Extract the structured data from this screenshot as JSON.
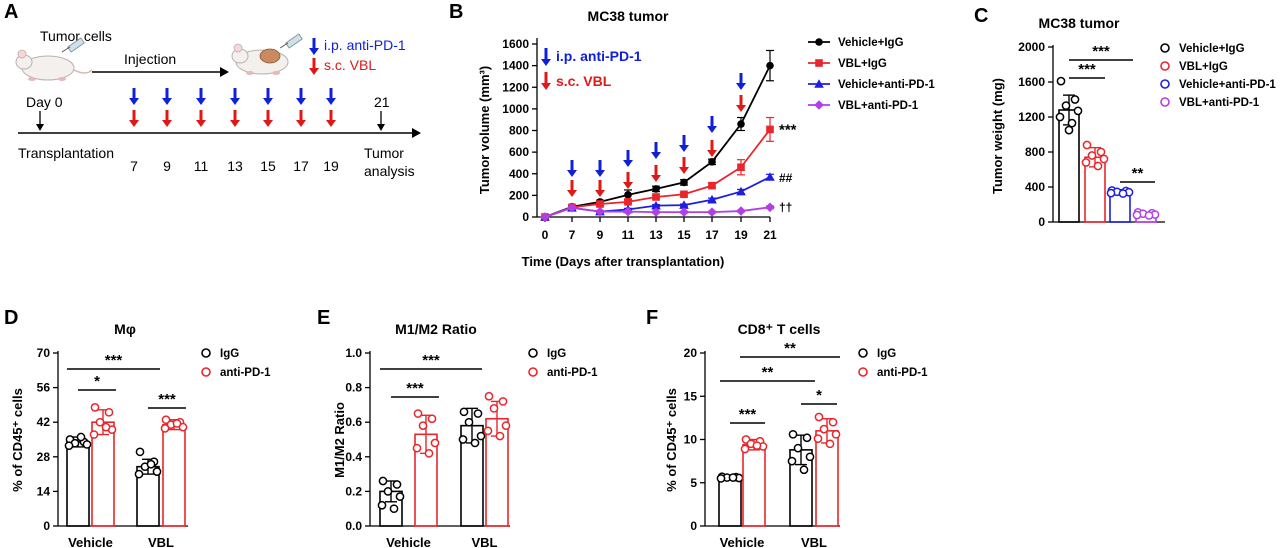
{
  "panel_labels": [
    "A",
    "B",
    "C",
    "D",
    "E",
    "F"
  ],
  "colors": {
    "black": "#000000",
    "red": "#e8262b",
    "blue": "#1d1fe0",
    "purple": "#b23ee8",
    "arrow_blue": "#1020d8",
    "arrow_red": "#e01818"
  },
  "schematic": {
    "tumor_cells": "Tumor cells",
    "injection": "Injection",
    "legend_blue": "i.p. anti-PD-1",
    "legend_red": "s.c. VBL",
    "day0": "Day 0",
    "transplantation": "Transplantation",
    "day21": "21",
    "tumor_analysis_1": "Tumor",
    "tumor_analysis_2": "analysis",
    "days": [
      "7",
      "9",
      "11",
      "13",
      "15",
      "17",
      "19"
    ]
  },
  "chart_data": [
    {
      "panel": "B",
      "type": "line",
      "title": "MC38 tumor",
      "xlabel": "Time (Days after transplantation)",
      "ylabel": "Tumor volume (mm³)",
      "x": [
        0,
        7,
        9,
        11,
        13,
        15,
        17,
        19,
        21
      ],
      "xticks": [
        "0",
        "7",
        "9",
        "11",
        "13",
        "15",
        "17",
        "19",
        "21"
      ],
      "ylim": [
        0,
        1600
      ],
      "yticks": [
        "0",
        "200",
        "400",
        "600",
        "800",
        "1000",
        "1200",
        "1400",
        "1600"
      ],
      "legend_position": "right",
      "annotation_blue": "i.p. anti-PD-1",
      "annotation_red": "s.c. VBL",
      "series": [
        {
          "name": "Vehicle+IgG",
          "color": "#000000",
          "marker": "circle",
          "values": [
            0,
            95,
            140,
            205,
            260,
            320,
            510,
            860,
            1400
          ],
          "err": [
            0,
            10,
            15,
            45,
            25,
            25,
            25,
            60,
            140
          ]
        },
        {
          "name": "VBL+IgG",
          "color": "#e8262b",
          "marker": "square",
          "values": [
            0,
            90,
            120,
            140,
            185,
            210,
            290,
            460,
            810
          ],
          "err": [
            0,
            10,
            15,
            15,
            15,
            15,
            20,
            70,
            110
          ]
        },
        {
          "name": "Vehicle+anti-PD-1",
          "color": "#1d1fe0",
          "marker": "triangle",
          "values": [
            0,
            85,
            50,
            70,
            105,
            110,
            160,
            235,
            370
          ],
          "err": [
            0,
            10,
            10,
            10,
            10,
            10,
            15,
            20,
            25
          ]
        },
        {
          "name": "VBL+anti-PD-1",
          "color": "#b23ee8",
          "marker": "diamond",
          "values": [
            0,
            85,
            50,
            50,
            45,
            45,
            45,
            55,
            90
          ],
          "err": [
            0,
            10,
            8,
            8,
            8,
            8,
            8,
            8,
            12
          ]
        }
      ],
      "end_labels": [
        "***",
        "##",
        "††"
      ],
      "arrows_days": [
        7,
        9,
        11,
        13,
        15,
        17,
        19
      ]
    },
    {
      "panel": "C",
      "type": "bar",
      "title": "MC38 tumor",
      "ylabel": "Tumor weight (mg)",
      "ylim": [
        0,
        2000
      ],
      "yticks": [
        "0",
        "400",
        "800",
        "1200",
        "1600",
        "2000"
      ],
      "categories": [
        "Vehicle+IgG",
        "VBL+IgG",
        "Vehicle+anti-PD-1",
        "VBL+anti-PD-1"
      ],
      "values": [
        1280,
        740,
        340,
        90
      ],
      "err": [
        170,
        110,
        30,
        20
      ],
      "colors": [
        "#000000",
        "#e8262b",
        "#1d1fe0",
        "#b23ee8"
      ],
      "points": [
        [
          1610,
          1400,
          1330,
          1270,
          1200,
          1130,
          1050
        ],
        [
          880,
          800,
          760,
          720,
          680,
          640
        ],
        [
          360,
          355,
          345,
          340,
          330,
          325
        ],
        [
          110,
          100,
          95,
          85,
          80,
          75
        ]
      ],
      "significance": [
        "***",
        "***",
        "**"
      ],
      "legend_position": "right"
    },
    {
      "panel": "D",
      "type": "bar",
      "title": "Mφ",
      "ylabel": "% of CD45⁺ cells",
      "ylim": [
        0,
        70
      ],
      "yticks": [
        "0",
        "14",
        "28",
        "42",
        "56",
        "70"
      ],
      "categories": [
        "Vehicle",
        "VBL"
      ],
      "series": [
        {
          "name": "IgG",
          "color": "#000000",
          "values": [
            34,
            24
          ],
          "err": [
            2,
            3
          ],
          "points": [
            [
              35,
              34,
              33.5,
              33,
              32.5,
              36
            ],
            [
              30,
              26,
              24,
              22,
              21,
              25
            ]
          ]
        },
        {
          "name": "anti-PD-1",
          "color": "#e8262b",
          "values": [
            42,
            41
          ],
          "err": [
            5,
            2
          ],
          "points": [
            [
              48,
              46,
              42,
              39,
              37,
              40
            ],
            [
              43,
              42,
              41,
              40,
              39.5,
              41.5
            ]
          ]
        }
      ],
      "significance": [
        "***",
        "*",
        "***"
      ],
      "legend_position": "top-right"
    },
    {
      "panel": "E",
      "type": "bar",
      "title": "M1/M2 Ratio",
      "ylabel": "M1/M2 Ratio",
      "ylim": [
        0,
        1.0
      ],
      "yticks": [
        "0.0",
        "0.2",
        "0.4",
        "0.6",
        "0.8",
        "1.0"
      ],
      "categories": [
        "Vehicle",
        "VBL"
      ],
      "series": [
        {
          "name": "IgG",
          "color": "#000000",
          "values": [
            0.2,
            0.58
          ],
          "err": [
            0.06,
            0.1
          ],
          "points": [
            [
              0.26,
              0.24,
              0.2,
              0.17,
              0.12,
              0.1
            ],
            [
              0.66,
              0.65,
              0.6,
              0.52,
              0.5,
              0.48
            ]
          ]
        },
        {
          "name": "anti-PD-1",
          "color": "#e8262b",
          "values": [
            0.53,
            0.62
          ],
          "err": [
            0.11,
            0.1
          ],
          "points": [
            [
              0.65,
              0.62,
              0.58,
              0.48,
              0.45,
              0.42
            ],
            [
              0.75,
              0.72,
              0.68,
              0.58,
              0.55,
              0.52
            ]
          ]
        }
      ],
      "significance": [
        "***",
        "***"
      ],
      "legend_position": "top-right"
    },
    {
      "panel": "F",
      "type": "bar",
      "title": "CD8⁺ T cells",
      "ylabel": "% of CD45⁺ cells",
      "ylim": [
        0,
        20
      ],
      "yticks": [
        "0",
        "5",
        "10",
        "15",
        "20"
      ],
      "categories": [
        "Vehicle",
        "VBL"
      ],
      "series": [
        {
          "name": "IgG",
          "color": "#000000",
          "values": [
            5.6,
            8.8
          ],
          "err": [
            0.2,
            1.7
          ],
          "points": [
            [
              5.7,
              5.65,
              5.6,
              5.55,
              5.5,
              5.6
            ],
            [
              10.6,
              10.2,
              9.0,
              8.0,
              7.5,
              6.5
            ]
          ]
        },
        {
          "name": "anti-PD-1",
          "color": "#e8262b",
          "values": [
            9.4,
            11.0
          ],
          "err": [
            0.6,
            1.4
          ],
          "points": [
            [
              10.0,
              9.8,
              9.5,
              9.2,
              8.9,
              9.3
            ],
            [
              12.6,
              12.0,
              11.2,
              10.6,
              10.1,
              9.5
            ]
          ]
        }
      ],
      "significance": [
        "**",
        "**",
        "***",
        "*"
      ],
      "legend_position": "top-right"
    }
  ]
}
